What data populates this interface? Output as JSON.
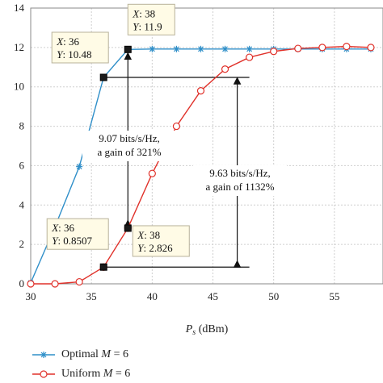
{
  "chart_data": {
    "type": "line",
    "xlabel_base": "P",
    "xlabel_sub": "s",
    "xlabel_unit": " (dBm)",
    "xlim": [
      30,
      59
    ],
    "ylim": [
      0,
      14
    ],
    "x_ticks": [
      "30",
      "35",
      "40",
      "45",
      "50",
      "55"
    ],
    "y_ticks": [
      "0",
      "2",
      "4",
      "6",
      "8",
      "10",
      "12",
      "14"
    ],
    "grid": true,
    "legend_placement": "bottom",
    "series": [
      {
        "name": "Optimal M = 6",
        "legend_text": "Optimal",
        "legend_var": "M",
        "legend_eq": " = 6",
        "color": "#2f8fc9",
        "marker": "star",
        "x": [
          30,
          32,
          34,
          36,
          38,
          40,
          42,
          44,
          46,
          48,
          50,
          52,
          54,
          56,
          58
        ],
        "y": [
          0.05,
          2.9,
          5.95,
          10.48,
          11.9,
          11.92,
          11.92,
          11.92,
          11.92,
          11.92,
          11.92,
          11.92,
          11.92,
          11.92,
          11.92
        ]
      },
      {
        "name": "Uniform M = 6",
        "legend_text": "Uniform",
        "legend_var": "M",
        "legend_eq": " = 6",
        "color": "#e0312a",
        "marker": "circle",
        "x": [
          30,
          32,
          34,
          36,
          38,
          40,
          42,
          44,
          46,
          48,
          50,
          52,
          54,
          56,
          58
        ],
        "y": [
          0,
          0.0,
          0.1,
          0.8507,
          2.826,
          5.6,
          8.0,
          9.8,
          10.9,
          11.5,
          11.8,
          11.95,
          12.0,
          12.05,
          12.0
        ]
      }
    ],
    "datatips": [
      {
        "x_label": "X",
        "x_val": ": 38",
        "y_label": "Y",
        "y_val": ": 11.9"
      },
      {
        "x_label": "X",
        "x_val": ": 36",
        "y_label": "Y",
        "y_val": ": 10.48"
      },
      {
        "x_label": "X",
        "x_val": ": 36",
        "y_label": "Y",
        "y_val": ": 0.8507"
      },
      {
        "x_label": "X",
        "x_val": ": 38",
        "y_label": "Y",
        "y_val": ": 2.826"
      }
    ],
    "annotations": [
      {
        "line1": "9.07 bits/s/Hz,",
        "line2": "a gain of 321%"
      },
      {
        "line1": "9.63 bits/s/Hz,",
        "line2": "a gain of 1132%"
      }
    ]
  }
}
